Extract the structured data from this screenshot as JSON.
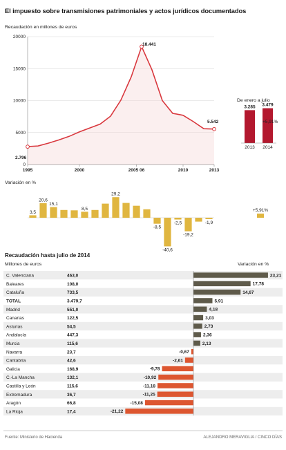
{
  "title": "El impuesto sobre transmisiones patrimoniales y actos jurídicos documentados",
  "source": "Fuente: Ministerio de Hacienda",
  "credit": "ALEJANDRO MERAVIGLIA / CINCO DÍAS",
  "chart_data": [
    {
      "type": "line",
      "subtitle": "Recaudación en millones de euros",
      "x": [
        1995,
        1996,
        1997,
        1998,
        1999,
        2000,
        2001,
        2002,
        2003,
        2004,
        2005,
        2006,
        2007,
        2008,
        2009,
        2010,
        2011,
        2012,
        2013
      ],
      "values": [
        2796,
        2896,
        3340,
        3840,
        4400,
        5100,
        5720,
        6320,
        7560,
        10080,
        13720,
        18441,
        14800,
        10000,
        8000,
        7700,
        6700,
        5600,
        5542
      ],
      "x_ticks": [
        "1995",
        "2000",
        "2005 06",
        "2010",
        "2013"
      ],
      "y_ticks": [
        "20000",
        "15000",
        "10000",
        "5000",
        "0"
      ],
      "ylim": [
        0,
        20000
      ],
      "labels": {
        "first": "2.796",
        "peak": "18.441",
        "last": "5.542"
      },
      "color": "#d9383e",
      "grid": true
    },
    {
      "type": "bar",
      "title": "De enero a julio",
      "categories": [
        "2013",
        "2014"
      ],
      "values": [
        3285,
        3479
      ],
      "value_labels": [
        "3.285",
        "3.479"
      ],
      "change_label": "+5,91%",
      "color": "#b3182e"
    },
    {
      "type": "bar",
      "subtitle": "Variación en %",
      "x": [
        1996,
        1997,
        1998,
        1999,
        2000,
        2001,
        2002,
        2003,
        2004,
        2005,
        2006,
        2007,
        2008,
        2009,
        2010,
        2011,
        2012,
        2013
      ],
      "values": [
        3.5,
        20.6,
        15.1,
        11.0,
        10.5,
        8.5,
        11.0,
        20.0,
        29.2,
        21.0,
        17.0,
        12.0,
        -8.5,
        -40.6,
        -2.5,
        -19.2,
        -5.5,
        -1.9
      ],
      "value_labels": [
        "3,5",
        "20,6",
        "15,1",
        "",
        "",
        "8,5",
        "",
        "",
        "29,2",
        "",
        "",
        "",
        "-8,5",
        "-40,6",
        "-2,5",
        "-19,2",
        "",
        "-1,9"
      ],
      "side_value": 5.91,
      "side_label": "+5,91%",
      "color": "#e0b640"
    },
    {
      "type": "bar",
      "title": "Recaudación hasta julio de 2014",
      "left_header": "Millones de euros",
      "right_header": "Variación en %",
      "categories": [
        "C. Valenciana",
        "Baleares",
        "Cataluña",
        "TOTAL",
        "Madrid",
        "Canarias",
        "Asturias",
        "Andalucía",
        "Murcia",
        "Navarra",
        "Cantabria",
        "Galicia",
        "C.-La Mancha",
        "Castilla y León",
        "Extremadura",
        "Aragón",
        "La Rioja"
      ],
      "amounts": [
        "463,0",
        "108,0",
        "733,5",
        "3.479,7",
        "551,0",
        "122,5",
        "54,5",
        "447,3",
        "115,6",
        "23,7",
        "42,6",
        "168,9",
        "132,1",
        "115,6",
        "36,7",
        "66,8",
        "17,4"
      ],
      "values": [
        23.21,
        17.78,
        14.67,
        5.91,
        4.18,
        3.03,
        2.73,
        2.36,
        2.13,
        -0.67,
        -2.61,
        -9.78,
        -10.92,
        -11.18,
        -11.25,
        -15.08,
        -21.22
      ],
      "value_labels": [
        "23,21",
        "17,78",
        "14,67",
        "5,91",
        "4,18",
        "3,03",
        "2,73",
        "2,36",
        "2,13",
        "-0,67",
        "-2,61",
        "-9,78",
        "-10,92",
        "-11,18",
        "-11,25",
        "-15,08",
        "-21,22"
      ],
      "positive_color": "#5e5a4a",
      "negative_color": "#dd5630"
    }
  ]
}
